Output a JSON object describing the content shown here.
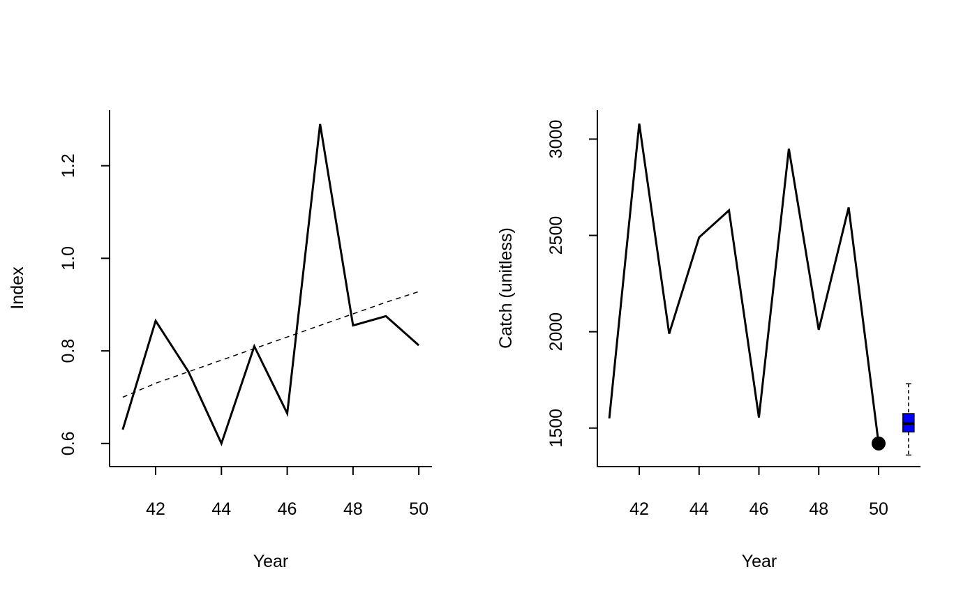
{
  "chart_data": [
    {
      "type": "line",
      "xlabel": "Year",
      "ylabel": "Index",
      "xlim": [
        40.6,
        50.4
      ],
      "ylim": [
        0.55,
        1.32
      ],
      "x_ticks": [
        "42",
        "44",
        "46",
        "48",
        "50"
      ],
      "y_ticks": [
        "0.6",
        "0.8",
        "1.0",
        "1.2"
      ],
      "series": [
        {
          "style": "solid",
          "x": [
            41,
            42,
            43,
            44,
            45,
            46,
            47,
            48,
            49,
            50
          ],
          "y": [
            0.63,
            0.865,
            0.755,
            0.6,
            0.81,
            0.665,
            1.29,
            0.855,
            0.875,
            0.812
          ]
        },
        {
          "style": "dashed",
          "x": [
            41,
            42,
            43,
            44,
            45,
            46,
            47,
            48,
            49,
            50
          ],
          "y": [
            0.7,
            0.73,
            0.755,
            0.78,
            0.805,
            0.83,
            0.855,
            0.88,
            0.905,
            0.928
          ]
        }
      ]
    },
    {
      "type": "line",
      "xlabel": "Year",
      "ylabel": "Catch (unitless)",
      "xlim": [
        40.6,
        51.4
      ],
      "ylim": [
        1300,
        3150
      ],
      "x_ticks": [
        "42",
        "44",
        "46",
        "48",
        "50"
      ],
      "y_ticks": [
        "1500",
        "2000",
        "2500",
        "3000"
      ],
      "series": [
        {
          "style": "solid",
          "x": [
            41,
            42,
            43,
            44,
            45,
            46,
            47,
            48,
            49,
            50
          ],
          "y": [
            1550,
            3080,
            1990,
            2490,
            2630,
            1555,
            2950,
            2010,
            2645,
            1420
          ]
        }
      ],
      "highlight_point": {
        "x": 50,
        "y": 1420,
        "color": "#000000"
      },
      "boxplot": {
        "x": 51,
        "whisker_low": 1360,
        "q1": 1480,
        "median": 1525,
        "q3": 1575,
        "whisker_high": 1730,
        "fill": "#0000ff"
      }
    }
  ]
}
